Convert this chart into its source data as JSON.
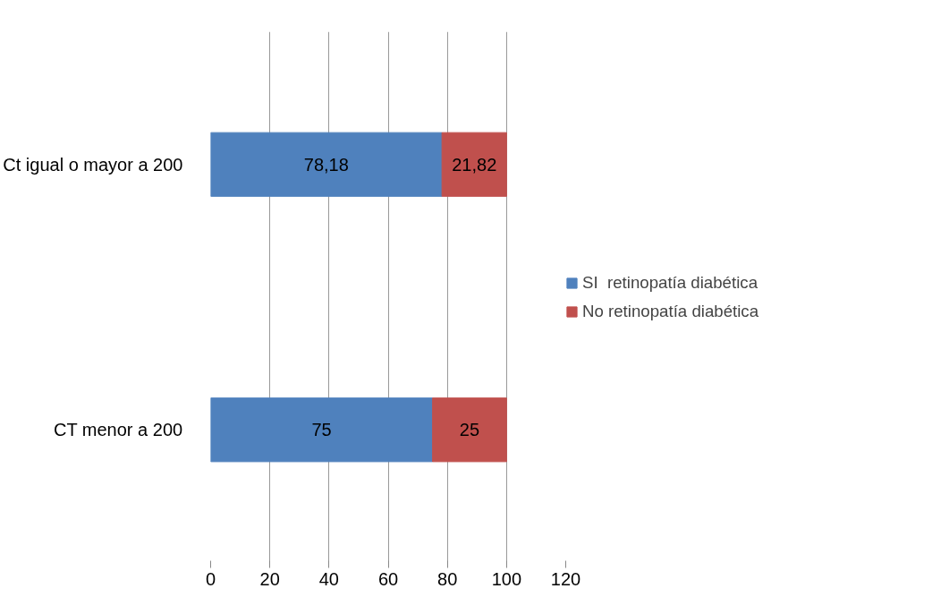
{
  "chart_data": {
    "type": "bar",
    "orientation": "horizontal",
    "stacked": true,
    "categories": [
      "Ct igual o mayor a 200",
      "CT menor a 200"
    ],
    "series": [
      {
        "name": "SI  retinopatía diabética",
        "color": "#4f81bd",
        "values": [
          78.18,
          75
        ],
        "value_labels": [
          "78,18",
          "75"
        ]
      },
      {
        "name": "No retinopatía diabética",
        "color": "#c0504d",
        "values": [
          21.82,
          25
        ],
        "value_labels": [
          "21,82",
          "25"
        ]
      }
    ],
    "xlim": [
      0,
      120
    ],
    "xticks": [
      0,
      20,
      40,
      60,
      80,
      100,
      120
    ],
    "grid": "x",
    "legend": "right"
  }
}
